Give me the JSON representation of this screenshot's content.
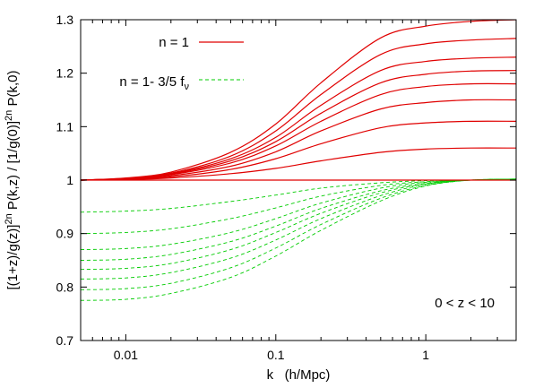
{
  "chart_data": {
    "type": "line",
    "title": "",
    "xlabel": "k   (h/Mpc)",
    "ylabel": "[(1+z)/g(z)]^2n P(k,z) / [1/g(0)]^2n P(k,0)",
    "xscale": "log",
    "xlim": [
      0.005,
      4
    ],
    "ylim": [
      0.7,
      1.3
    ],
    "xticks": [
      0.01,
      0.1,
      1
    ],
    "xtick_labels": [
      "0.01",
      "0.1",
      "1"
    ],
    "yticks": [
      0.7,
      0.8,
      0.9,
      1,
      1.1,
      1.2,
      1.3
    ],
    "ytick_labels": [
      "0.7",
      "0.8",
      "0.9",
      "1",
      "1.1",
      "1.2",
      "1.3"
    ],
    "grid": false,
    "legend_position": "top-left",
    "legend": [
      {
        "label_main": "n = 1",
        "label_sub": "",
        "color": "#e00000",
        "dash": "solid"
      },
      {
        "label_main": "n = 1- 3/5 f",
        "label_sub": "ν",
        "color": "#00cc00",
        "dash": "dashed"
      }
    ],
    "annotation": "0 < z < 10",
    "x": [
      0.005,
      0.01,
      0.02,
      0.05,
      0.1,
      0.2,
      0.5,
      1,
      2,
      4
    ],
    "series": [
      {
        "group": "n = 1",
        "color": "#e00000",
        "dash": "solid",
        "y": [
          1.0,
          1.0,
          1.0,
          1.0,
          1.0,
          1.0,
          1.0,
          1.0,
          1.0,
          1.0
        ]
      },
      {
        "group": "n = 1",
        "color": "#e00000",
        "dash": "solid",
        "y": [
          1.0,
          1.001,
          1.004,
          1.012,
          1.022,
          1.036,
          1.052,
          1.058,
          1.06,
          1.06
        ]
      },
      {
        "group": "n = 1",
        "color": "#e00000",
        "dash": "solid",
        "y": [
          1.0,
          1.002,
          1.006,
          1.02,
          1.04,
          1.068,
          1.098,
          1.107,
          1.11,
          1.11
        ]
      },
      {
        "group": "n = 1",
        "color": "#e00000",
        "dash": "solid",
        "y": [
          1.0,
          1.002,
          1.008,
          1.026,
          1.053,
          1.092,
          1.133,
          1.145,
          1.15,
          1.15
        ]
      },
      {
        "group": "n = 1",
        "color": "#e00000",
        "dash": "solid",
        "y": [
          1.0,
          1.003,
          1.01,
          1.032,
          1.064,
          1.11,
          1.16,
          1.175,
          1.18,
          1.18
        ]
      },
      {
        "group": "n = 1",
        "color": "#e00000",
        "dash": "solid",
        "y": [
          1.0,
          1.003,
          1.011,
          1.036,
          1.072,
          1.125,
          1.182,
          1.198,
          1.204,
          1.205
        ]
      },
      {
        "group": "n = 1",
        "color": "#e00000",
        "dash": "solid",
        "y": [
          1.0,
          1.003,
          1.012,
          1.04,
          1.08,
          1.14,
          1.205,
          1.222,
          1.228,
          1.23
        ]
      },
      {
        "group": "n = 1",
        "color": "#e00000",
        "dash": "solid",
        "y": [
          1.0,
          1.003,
          1.013,
          1.045,
          1.092,
          1.16,
          1.235,
          1.255,
          1.262,
          1.265
        ]
      },
      {
        "group": "n = 1",
        "color": "#e00000",
        "dash": "solid",
        "y": [
          1.0,
          1.004,
          1.015,
          1.052,
          1.105,
          1.182,
          1.266,
          1.288,
          1.297,
          1.3
        ]
      },
      {
        "group": "n = 1- 3/5 f",
        "color": "#00cc00",
        "dash": "dashed",
        "y": [
          1.0,
          1.0,
          1.0,
          1.0,
          1.0,
          1.0,
          1.0,
          1.0,
          1.0,
          1.0
        ]
      },
      {
        "group": "n = 1- 3/5 f",
        "color": "#00cc00",
        "dash": "dashed",
        "y": [
          0.94,
          0.942,
          0.947,
          0.96,
          0.972,
          0.985,
          0.995,
          0.999,
          1.0,
          1.0
        ]
      },
      {
        "group": "n = 1- 3/5 f",
        "color": "#00cc00",
        "dash": "dashed",
        "y": [
          0.9,
          0.902,
          0.909,
          0.928,
          0.948,
          0.97,
          0.99,
          0.997,
          1.0,
          1.001
        ]
      },
      {
        "group": "n = 1- 3/5 f",
        "color": "#00cc00",
        "dash": "dashed",
        "y": [
          0.87,
          0.872,
          0.88,
          0.902,
          0.928,
          0.957,
          0.985,
          0.996,
          1.0,
          1.001
        ]
      },
      {
        "group": "n = 1- 3/5 f",
        "color": "#00cc00",
        "dash": "dashed",
        "y": [
          0.85,
          0.852,
          0.861,
          0.885,
          0.914,
          0.947,
          0.98,
          0.994,
          1.0,
          1.002
        ]
      },
      {
        "group": "n = 1- 3/5 f",
        "color": "#00cc00",
        "dash": "dashed",
        "y": [
          0.833,
          0.835,
          0.844,
          0.87,
          0.902,
          0.938,
          0.976,
          0.993,
          1.0,
          1.002
        ]
      },
      {
        "group": "n = 1- 3/5 f",
        "color": "#00cc00",
        "dash": "dashed",
        "y": [
          0.815,
          0.817,
          0.827,
          0.854,
          0.888,
          0.928,
          0.971,
          0.992,
          1.0,
          1.002
        ]
      },
      {
        "group": "n = 1- 3/5 f",
        "color": "#00cc00",
        "dash": "dashed",
        "y": [
          0.795,
          0.797,
          0.807,
          0.836,
          0.873,
          0.917,
          0.966,
          0.99,
          1.0,
          1.002
        ]
      },
      {
        "group": "n = 1- 3/5 f",
        "color": "#00cc00",
        "dash": "dashed",
        "y": [
          0.775,
          0.777,
          0.788,
          0.818,
          0.858,
          0.906,
          0.961,
          0.989,
          1.0,
          1.002
        ]
      }
    ]
  }
}
